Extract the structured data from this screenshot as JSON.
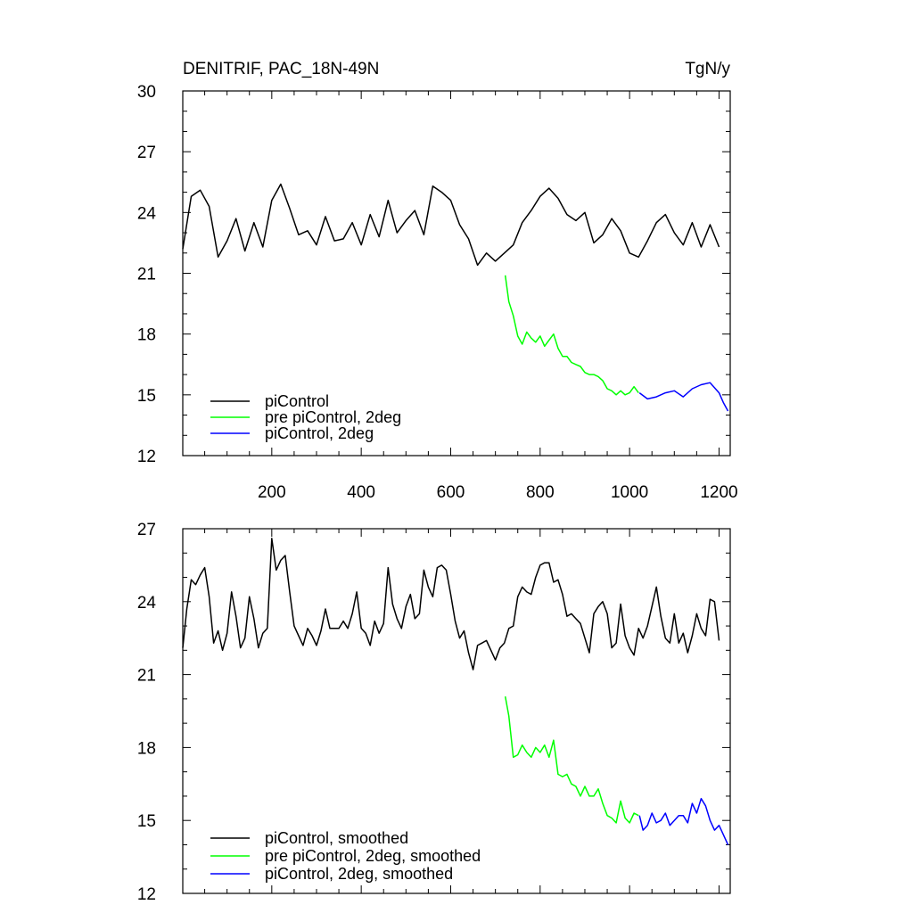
{
  "chart_data": [
    {
      "type": "line",
      "title": "DENITRIF, PAC_18N-49N",
      "units": "TgN/y",
      "xlim": [
        1,
        1225
      ],
      "ylim": [
        12,
        30
      ],
      "x_ticks": [
        200,
        400,
        600,
        800,
        1000,
        1200
      ],
      "x_tick_labels": [
        "200",
        "400",
        "600",
        "800",
        "1000",
        "1200"
      ],
      "y_ticks": [
        12,
        15,
        18,
        21,
        24,
        27,
        30
      ],
      "y_tick_labels": [
        "12",
        "15",
        "18",
        "21",
        "24",
        "27",
        "30"
      ],
      "grid": false,
      "legend_position": "bottom-left",
      "series": [
        {
          "name": "piControl",
          "color": "#000000",
          "x": [
            1,
            20,
            40,
            60,
            80,
            100,
            120,
            140,
            160,
            180,
            200,
            220,
            240,
            260,
            280,
            300,
            320,
            340,
            360,
            380,
            400,
            420,
            440,
            460,
            480,
            500,
            520,
            540,
            560,
            580,
            600,
            620,
            640,
            660,
            680,
            700,
            720,
            740,
            760,
            780,
            800,
            820,
            840,
            860,
            880,
            900,
            920,
            940,
            960,
            980,
            1000,
            1020,
            1040,
            1060,
            1080,
            1100,
            1120,
            1140,
            1160,
            1180,
            1200
          ],
          "y": [
            22.2,
            24.8,
            25.1,
            24.3,
            21.8,
            22.6,
            23.7,
            22.1,
            23.5,
            22.3,
            24.6,
            25.4,
            24.2,
            22.9,
            23.1,
            22.4,
            23.8,
            22.6,
            22.7,
            23.5,
            22.4,
            23.9,
            22.8,
            24.6,
            23.0,
            23.6,
            24.1,
            22.9,
            25.3,
            25.0,
            24.6,
            23.4,
            22.7,
            21.4,
            22.0,
            21.6,
            22.0,
            22.4,
            23.5,
            24.1,
            24.8,
            25.2,
            24.7,
            23.9,
            23.6,
            24.0,
            22.5,
            22.9,
            23.7,
            23.1,
            22.0,
            21.8,
            22.6,
            23.5,
            23.9,
            23.0,
            22.4,
            23.5,
            22.3,
            23.4,
            22.3
          ]
        },
        {
          "name": "pre piControl, 2deg",
          "color": "#00ff00",
          "x": [
            722,
            730,
            740,
            750,
            760,
            770,
            780,
            790,
            800,
            810,
            820,
            830,
            840,
            850,
            860,
            870,
            880,
            890,
            900,
            910,
            920,
            930,
            940,
            950,
            960,
            970,
            980,
            990,
            1000,
            1010,
            1020
          ],
          "y": [
            20.9,
            19.6,
            18.9,
            17.9,
            17.5,
            18.1,
            17.8,
            17.6,
            17.9,
            17.4,
            17.7,
            18.0,
            17.3,
            16.9,
            16.9,
            16.6,
            16.5,
            16.4,
            16.1,
            16.0,
            16.0,
            15.9,
            15.7,
            15.3,
            15.2,
            15.0,
            15.2,
            15.0,
            15.1,
            15.4,
            15.1
          ]
        },
        {
          "name": "piControl, 2deg",
          "color": "#0000ff",
          "x": [
            1022,
            1040,
            1060,
            1080,
            1100,
            1120,
            1140,
            1160,
            1180,
            1200,
            1210,
            1220
          ],
          "y": [
            15.1,
            14.8,
            14.9,
            15.1,
            15.2,
            14.9,
            15.3,
            15.5,
            15.6,
            15.1,
            14.6,
            14.2
          ]
        }
      ]
    },
    {
      "type": "line",
      "xlim": [
        1,
        1225
      ],
      "ylim": [
        12,
        27
      ],
      "x_ticks": [
        200,
        400,
        600,
        800,
        1000,
        1200
      ],
      "y_ticks": [
        12,
        15,
        18,
        21,
        24,
        27
      ],
      "y_tick_labels": [
        "12",
        "15",
        "18",
        "21",
        "24",
        "27"
      ],
      "grid": false,
      "legend_position": "bottom-left",
      "series": [
        {
          "name": "piControl, smoothed",
          "color": "#000000",
          "x": [
            1,
            10,
            20,
            30,
            40,
            50,
            60,
            70,
            80,
            90,
            100,
            110,
            120,
            130,
            140,
            150,
            160,
            170,
            180,
            190,
            200,
            210,
            220,
            230,
            240,
            250,
            260,
            270,
            280,
            290,
            300,
            310,
            320,
            330,
            340,
            350,
            360,
            370,
            380,
            390,
            400,
            410,
            420,
            430,
            440,
            450,
            460,
            470,
            480,
            490,
            500,
            510,
            520,
            530,
            540,
            550,
            560,
            570,
            580,
            590,
            600,
            610,
            620,
            630,
            640,
            650,
            660,
            670,
            680,
            690,
            700,
            710,
            720,
            730,
            740,
            750,
            760,
            770,
            780,
            790,
            800,
            810,
            820,
            830,
            840,
            850,
            860,
            870,
            880,
            890,
            900,
            910,
            920,
            930,
            940,
            950,
            960,
            970,
            980,
            990,
            1000,
            1010,
            1020,
            1030,
            1040,
            1050,
            1060,
            1070,
            1080,
            1090,
            1100,
            1110,
            1120,
            1130,
            1140,
            1150,
            1160,
            1170,
            1180,
            1190,
            1200
          ],
          "y": [
            22.1,
            23.7,
            24.9,
            24.7,
            25.1,
            25.4,
            24.2,
            22.3,
            22.8,
            22.0,
            22.7,
            24.4,
            23.4,
            22.1,
            22.5,
            24.2,
            23.3,
            22.1,
            22.7,
            22.9,
            26.6,
            25.3,
            25.7,
            25.9,
            24.4,
            23.0,
            22.6,
            22.2,
            22.9,
            22.6,
            22.2,
            22.8,
            23.7,
            22.9,
            22.9,
            22.9,
            23.2,
            22.9,
            23.5,
            24.4,
            22.9,
            22.7,
            22.2,
            23.2,
            22.7,
            23.1,
            25.4,
            23.9,
            23.3,
            22.9,
            23.8,
            24.3,
            23.3,
            23.5,
            25.3,
            24.6,
            24.2,
            25.4,
            25.5,
            25.3,
            24.3,
            23.2,
            22.5,
            22.8,
            21.9,
            21.2,
            22.2,
            22.3,
            22.4,
            22.0,
            21.6,
            22.1,
            22.3,
            22.9,
            23.0,
            24.2,
            24.6,
            24.4,
            24.3,
            25.0,
            25.5,
            25.6,
            25.6,
            24.8,
            24.9,
            24.3,
            23.4,
            23.5,
            23.3,
            23.1,
            22.5,
            21.9,
            23.5,
            23.8,
            24.0,
            23.5,
            22.1,
            22.3,
            23.9,
            22.6,
            22.1,
            21.8,
            22.9,
            22.5,
            23.0,
            23.8,
            24.6,
            23.4,
            22.5,
            22.3,
            23.5,
            22.3,
            22.7,
            21.9,
            22.6,
            23.5,
            22.9,
            22.6,
            24.1,
            24.0,
            22.4
          ]
        },
        {
          "name": "pre piControl, 2deg, smoothed",
          "color": "#00ff00",
          "x": [
            722,
            730,
            740,
            750,
            760,
            770,
            780,
            790,
            800,
            810,
            820,
            830,
            840,
            850,
            860,
            870,
            880,
            890,
            900,
            910,
            920,
            930,
            940,
            950,
            960,
            970,
            980,
            990,
            1000,
            1010,
            1020
          ],
          "y": [
            20.1,
            19.3,
            17.6,
            17.7,
            18.1,
            17.8,
            17.6,
            18.0,
            17.8,
            18.1,
            17.6,
            18.3,
            16.9,
            16.8,
            16.9,
            16.5,
            16.4,
            16.0,
            16.4,
            16.0,
            16.0,
            16.3,
            15.7,
            15.2,
            15.1,
            14.9,
            15.8,
            15.1,
            14.9,
            15.3,
            15.2
          ]
        },
        {
          "name": "piControl, 2deg, smoothed",
          "color": "#0000ff",
          "x": [
            1022,
            1030,
            1040,
            1050,
            1060,
            1070,
            1080,
            1090,
            1100,
            1110,
            1120,
            1130,
            1140,
            1150,
            1160,
            1170,
            1180,
            1190,
            1200,
            1210,
            1220
          ],
          "y": [
            15.2,
            14.6,
            14.8,
            15.3,
            14.9,
            15.0,
            15.3,
            14.8,
            15.0,
            15.2,
            15.2,
            14.9,
            15.7,
            15.3,
            15.9,
            15.6,
            15.0,
            14.6,
            14.8,
            14.4,
            14.0
          ]
        }
      ]
    }
  ]
}
